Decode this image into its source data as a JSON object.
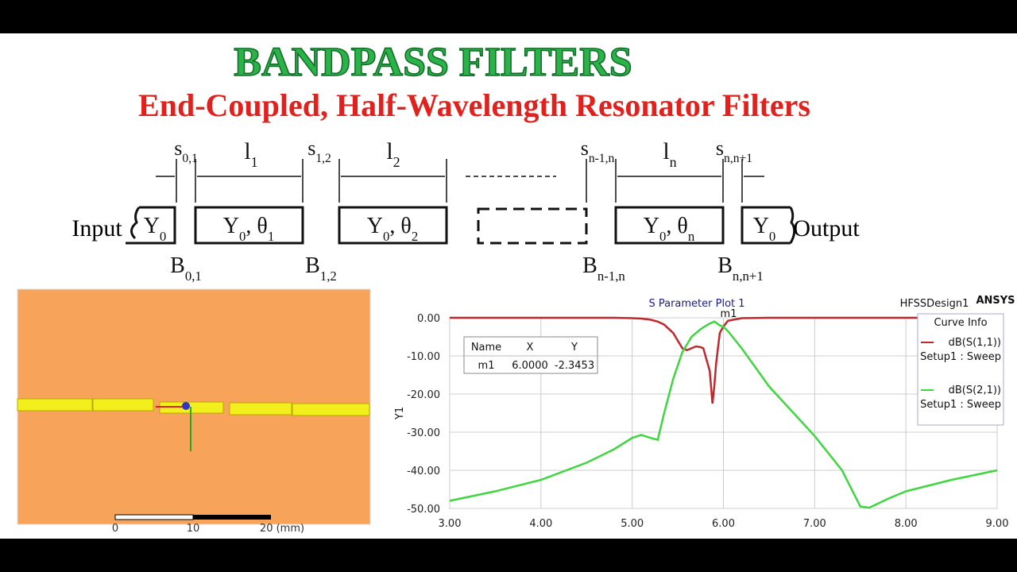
{
  "header": {
    "title": "BANDPASS FILTERS",
    "subtitle": "End-Coupled, Half-Wavelength Resonator Filters"
  },
  "diagram": {
    "input": "Input",
    "output": "Output",
    "port_label": [
      "Y",
      "0"
    ],
    "gap_labels": [
      [
        "s",
        "0,1"
      ],
      [
        "s",
        "1,2"
      ],
      [
        "s",
        "n-1,n"
      ],
      [
        "s",
        "n,n+1"
      ]
    ],
    "length_labels": [
      [
        "l",
        "1"
      ],
      [
        "l",
        "2"
      ],
      [
        "l",
        "n"
      ]
    ],
    "resonator_labels": [
      [
        "Y",
        "0",
        ", θ",
        "1"
      ],
      [
        "Y",
        "0",
        ", θ",
        "2"
      ],
      [
        "Y",
        "0",
        ", θ",
        "n"
      ]
    ],
    "susceptance_labels": [
      [
        "B",
        "0,1"
      ],
      [
        "B",
        "1,2"
      ],
      [
        "B",
        "n-1,n"
      ],
      [
        "B",
        "n,n+1"
      ]
    ]
  },
  "layout_view": {
    "scale_labels": [
      "0",
      "10",
      "20 (mm)"
    ]
  },
  "chart_data": {
    "type": "line",
    "title": "S Parameter Plot 1",
    "design": "HFSSDesign1",
    "brand": "ANSYS",
    "y_label": "Y1",
    "legend_title": "Curve Info",
    "x": [
      3,
      3.5,
      4,
      4.5,
      4.8,
      5,
      5.1,
      5.2,
      5.28,
      5.35,
      5.45,
      5.55,
      5.6,
      5.65,
      5.7,
      5.75,
      5.78,
      5.85,
      5.88,
      5.9,
      5.92,
      5.96,
      6,
      6.05,
      6.2,
      6.5,
      7,
      7.3,
      7.5,
      7.6,
      7.8,
      8,
      8.5,
      9
    ],
    "series": [
      {
        "name": "dB(S(1,1))",
        "setup": "Setup1 : Sweep",
        "color": "#c0282d",
        "values": [
          0,
          0,
          0,
          0,
          0,
          -0.1,
          -0.2,
          -0.5,
          -1,
          -1.8,
          -4,
          -8,
          -8.5,
          -8,
          -7.5,
          -7.7,
          -8,
          -14,
          -22.5,
          -18,
          -12,
          -4,
          -2.3,
          -0.8,
          -0.1,
          0,
          0,
          0,
          0,
          0,
          0,
          0,
          0,
          0
        ]
      },
      {
        "name": "dB(S(2,1))",
        "setup": "Setup1 : Sweep",
        "color": "#3fd63f",
        "values": [
          -48,
          -45.5,
          -42.5,
          -38,
          -34.5,
          -31.5,
          -30.7,
          -31.5,
          -32,
          -25,
          -16,
          -9,
          -7,
          -5,
          -4,
          -3,
          -2.5,
          -1.5,
          -1.2,
          -1,
          -1.3,
          -2,
          -2.35,
          -3.5,
          -8,
          -18,
          -31,
          -40,
          -49.5,
          -49.8,
          -47.5,
          -45.5,
          -42.5,
          -40
        ]
      }
    ],
    "xlim": [
      3,
      9
    ],
    "xticks": [
      {
        "value": 3,
        "label": "3.00"
      },
      {
        "value": 4,
        "label": "4.00"
      },
      {
        "value": 5,
        "label": "5.00"
      },
      {
        "value": 6,
        "label": "6.00"
      },
      {
        "value": 7,
        "label": "7.00"
      },
      {
        "value": 8,
        "label": "8.00"
      },
      {
        "value": 9,
        "label": "9.00"
      }
    ],
    "ylim": [
      -50,
      0
    ],
    "yticks": [
      {
        "value": 0,
        "label": "0.00"
      },
      {
        "value": -10,
        "label": "-10.00"
      },
      {
        "value": -20,
        "label": "-20.00"
      },
      {
        "value": -30,
        "label": "-30.00"
      },
      {
        "value": -40,
        "label": "-40.00"
      },
      {
        "value": -50,
        "label": "-50.00"
      }
    ],
    "grid": true,
    "marker_table": {
      "columns": [
        "Name",
        "X",
        "Y"
      ],
      "rows": [
        [
          "m1",
          "6.0000",
          "-2.3453"
        ]
      ]
    }
  }
}
